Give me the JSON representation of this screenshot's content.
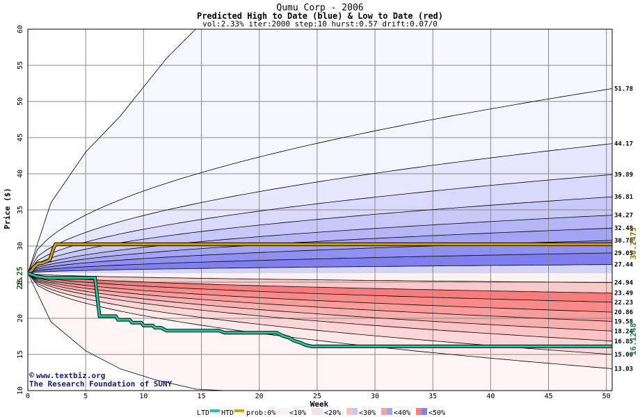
{
  "chart_data": {
    "type": "area",
    "title": "Qumu Corp - 2006",
    "subtitle": "Predicted High to Date (blue) &  Low to Date (red)",
    "params": "vol:2.33% iter:2000 step:10 hurst:0.57 drift:0.07/0",
    "xlabel": "Week",
    "ylabel": "Price ($)",
    "xlim": [
      0,
      50.5
    ],
    "ylim": [
      10,
      60
    ],
    "x_ticks": [
      0,
      5,
      10,
      15,
      20,
      25,
      30,
      35,
      40,
      45,
      50
    ],
    "y_ticks": [
      10,
      15,
      20,
      25,
      30,
      35,
      40,
      45,
      50,
      55,
      60
    ],
    "grid": true,
    "start_price": 26.25,
    "start_label": "26.25",
    "high_band_end_values": [
      {
        "label": "51.78",
        "value": 51.78
      },
      {
        "label": "44.17",
        "value": 44.17
      },
      {
        "label": "39.89",
        "value": 39.89
      },
      {
        "label": "36.81",
        "value": 36.81
      },
      {
        "label": "34.27",
        "value": 34.27
      },
      {
        "label": "32.48",
        "value": 32.48
      },
      {
        "label": "30.78",
        "value": 30.78
      },
      {
        "label": "29.05",
        "value": 29.05
      },
      {
        "label": "27.44",
        "value": 27.44
      }
    ],
    "low_band_end_values": [
      {
        "label": "24.94",
        "value": 24.94
      },
      {
        "label": "23.49",
        "value": 23.49
      },
      {
        "label": "22.23",
        "value": 22.23
      },
      {
        "label": "20.86",
        "value": 20.86
      },
      {
        "label": "19.58",
        "value": 19.58
      },
      {
        "label": "18.24",
        "value": 18.24
      },
      {
        "label": "16.85",
        "value": 16.85
      },
      {
        "label": "15.00",
        "value": 15.0
      },
      {
        "label": "13.03",
        "value": 13.03
      }
    ],
    "outer_envelope": {
      "high_weeks": [
        0,
        2,
        5,
        8,
        10,
        12,
        14.5
      ],
      "high_values": [
        26.25,
        36,
        43,
        48,
        52,
        56,
        60
      ],
      "low_weeks": [
        0,
        2,
        5,
        8,
        11,
        14.5,
        17
      ],
      "low_values": [
        26.25,
        19.5,
        15.5,
        13,
        11.5,
        10.2,
        10
      ]
    },
    "htd_series": {
      "name": "HTD",
      "color": "#d6a000",
      "weeks": [
        0,
        0.3,
        0.6,
        0.9,
        1.2,
        1.5,
        1.9,
        2.2,
        2.4,
        50.5
      ],
      "values": [
        26.25,
        26.6,
        27.2,
        27.6,
        27.6,
        27.8,
        28.1,
        29.6,
        30.25,
        30.25
      ],
      "end_label": "30.2475"
    },
    "ltd_series": {
      "name": "LTD",
      "color": "#1dc9a0",
      "weeks": [
        0,
        0.8,
        1.6,
        5.8,
        6.0,
        6.2,
        7.6,
        7.8,
        8.8,
        9.0,
        9.8,
        10.0,
        10.8,
        11.0,
        11.5,
        12.0,
        16.5,
        17.0,
        21.5,
        22.0,
        22.6,
        23.0,
        23.6,
        24.0,
        24.6,
        25.0,
        50.5
      ],
      "values": [
        26.25,
        25.8,
        25.6,
        25.6,
        23.0,
        20.3,
        20.3,
        19.8,
        19.8,
        19.4,
        19.4,
        19.0,
        19.0,
        18.7,
        18.7,
        18.3,
        18.3,
        18.0,
        18.0,
        17.6,
        17.3,
        16.9,
        16.6,
        16.3,
        16.1,
        16.12,
        16.12
      ],
      "end_label": "16.1248"
    },
    "credit_line1": "www.textbiz.org",
    "credit_symbol": "©",
    "credit_line2": "The Research Foundation of SUNY",
    "legend": {
      "ltd": "LTD",
      "htd": "HTD",
      "prob": "prob:0%",
      "bins": [
        "<10%",
        "<20%",
        "<30%",
        "<40%",
        "<50%"
      ],
      "blue_colors": [
        "#f2f2ff",
        "#e4e4fb",
        "#c4c4f7",
        "#a4a4f4",
        "#8383f0"
      ],
      "red_colors": [
        "#fff0f0",
        "#fddede",
        "#fbc0c0",
        "#f9a2a2",
        "#f77f7f"
      ]
    },
    "colors": {
      "blue_bands": [
        "#f4f4ff",
        "#e6e6fc",
        "#d8d8fa",
        "#c8c8f8",
        "#b6b6f6",
        "#a4a4f4",
        "#9090f2",
        "#7f7fef",
        "#d4d4f8"
      ],
      "red_bands": [
        "#fde8e8",
        "#fcd6d6",
        "#fbc4c4",
        "#faafaf",
        "#f99c9c",
        "#f88a8a",
        "#f77d7d",
        "#fbc9c9",
        "#fff2f2"
      ],
      "outer_blue": "#f7f7ff",
      "outer_red": "#fff5f5",
      "ltd": "#1dc9a0",
      "htd": "#d6a000",
      "start_label": "#116611",
      "htd_label": "#8a6a00",
      "ltd_label": "#118866"
    }
  }
}
